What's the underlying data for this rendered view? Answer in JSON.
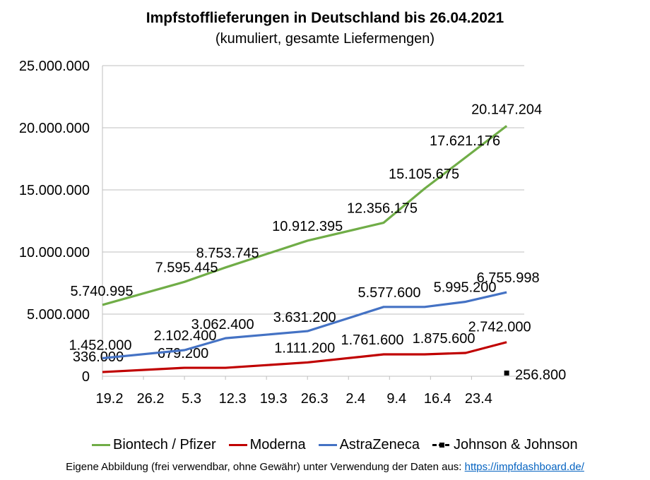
{
  "title": "Impfstofflieferungen in Deutschland bis 26.04.2021",
  "subtitle": "(kumuliert, gesamte Liefermengen)",
  "footnote": {
    "text": "Eigene Abbildung (frei verwendbar, ohne Gewähr) unter Verwendung der Daten aus: ",
    "link": "https://impfdashboard.de/"
  },
  "chart_data": {
    "type": "line",
    "x_tick_labels": [
      "19.2",
      "26.2",
      "5.3",
      "12.3",
      "19.3",
      "26.3",
      "2.4",
      "9.4",
      "16.4",
      "23.4"
    ],
    "x_unit": "days since 2021-02-19",
    "ylim": [
      0,
      25000000
    ],
    "y_tick_labels": [
      "0",
      "5.000.000",
      "10.000.000",
      "15.000.000",
      "20.000.000",
      "25.000.000"
    ],
    "y_tick_values": [
      0,
      5000000,
      10000000,
      15000000,
      20000000,
      25000000
    ],
    "grid": true,
    "legend_position": "bottom",
    "series": [
      {
        "name": "Biontech / Pfizer",
        "color": "#70ad47",
        "points": [
          [
            0,
            5740995
          ],
          [
            14,
            7595445
          ],
          [
            21,
            8753745
          ],
          [
            35,
            10912395
          ],
          [
            48,
            12356175
          ],
          [
            55,
            15105675
          ],
          [
            62,
            17621176
          ],
          [
            69,
            20147204
          ]
        ],
        "labels": [
          {
            "idx": 0,
            "text": "5.740.995"
          },
          {
            "idx": 1,
            "text": "7.595.445"
          },
          {
            "idx": 2,
            "text": "8.753.745"
          },
          {
            "idx": 3,
            "text": "10.912.395"
          },
          {
            "idx": 4,
            "text": "12.356.175"
          },
          {
            "idx": 5,
            "text": "15.105.675"
          },
          {
            "idx": 6,
            "text": "17.621.176"
          },
          {
            "idx": 7,
            "text": "20.147.204"
          }
        ]
      },
      {
        "name": "Moderna",
        "color": "#c00000",
        "points": [
          [
            0,
            336000
          ],
          [
            14,
            679200
          ],
          [
            21,
            679200
          ],
          [
            35,
            1111200
          ],
          [
            48,
            1761600
          ],
          [
            55,
            1761600
          ],
          [
            62,
            1875600
          ],
          [
            69,
            2742000
          ]
        ],
        "labels": [
          {
            "idx": 0,
            "text": "336.000"
          },
          {
            "idx": 1,
            "text": "679.200"
          },
          {
            "idx": 3,
            "text": "1.111.200"
          },
          {
            "idx": 4,
            "text": "1.761.600"
          },
          {
            "idx": 6,
            "text": "1.875.600"
          },
          {
            "idx": 7,
            "text": "2.742.000"
          }
        ]
      },
      {
        "name": "AstraZeneca",
        "color": "#4472c4",
        "points": [
          [
            0,
            1452000
          ],
          [
            14,
            2102400
          ],
          [
            21,
            3062400
          ],
          [
            35,
            3631200
          ],
          [
            48,
            5577600
          ],
          [
            55,
            5577600
          ],
          [
            62,
            5995200
          ],
          [
            69,
            6755998
          ]
        ],
        "labels": [
          {
            "idx": 0,
            "text": "1.452.000"
          },
          {
            "idx": 1,
            "text": "2.102.400"
          },
          {
            "idx": 2,
            "text": "3.062.400"
          },
          {
            "idx": 3,
            "text": "3.631.200"
          },
          {
            "idx": 4,
            "text": "5.577.600"
          },
          {
            "idx": 6,
            "text": "5.995.200"
          },
          {
            "idx": 7,
            "text": "6.755.998"
          }
        ]
      },
      {
        "name": "Johnson & Johnson",
        "color": "#000000",
        "points": [
          [
            69,
            256800
          ]
        ],
        "labels": [
          {
            "idx": 0,
            "text": "256.800"
          }
        ]
      }
    ]
  }
}
